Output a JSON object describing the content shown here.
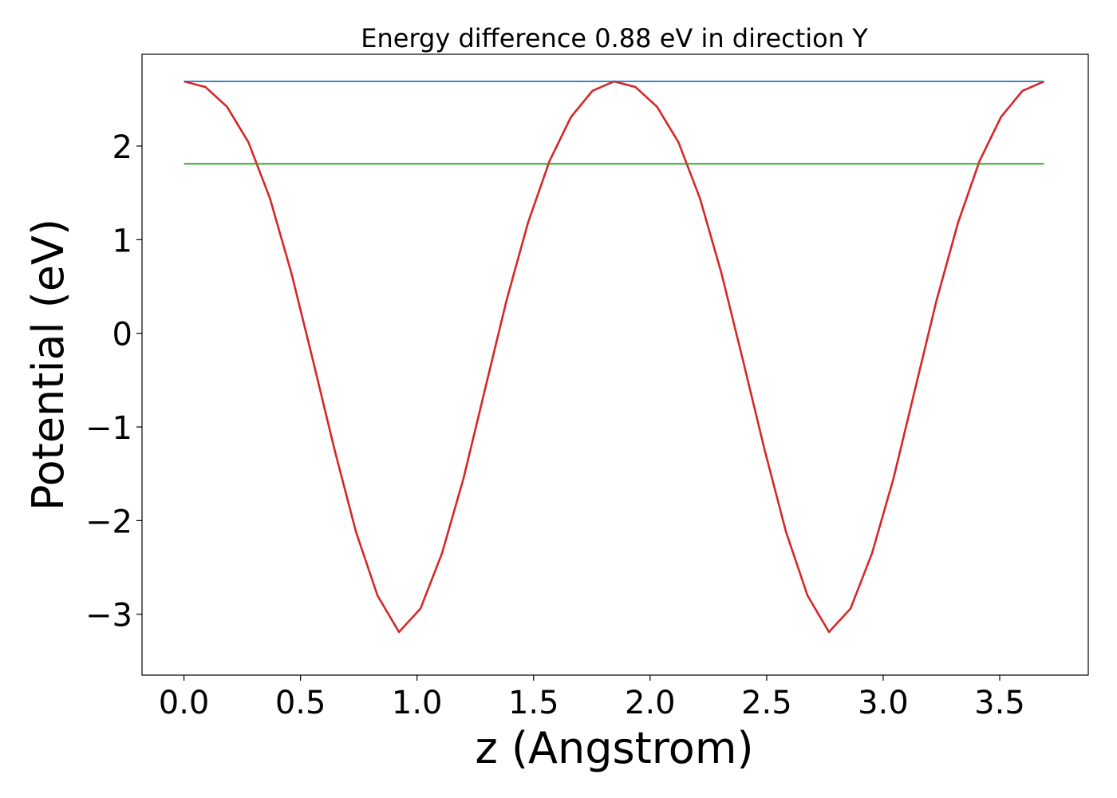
{
  "chart_data": {
    "type": "line",
    "title": "Energy difference 0.88 eV in direction Y",
    "xlabel": "z (Angstrom)",
    "ylabel": "Potential (eV)",
    "xlim": [
      -0.18,
      3.88
    ],
    "ylim": [
      -3.65,
      2.98
    ],
    "xticks": [
      0.0,
      0.5,
      1.0,
      1.5,
      2.0,
      2.5,
      3.0,
      3.5
    ],
    "xtick_labels": [
      "0.0",
      "0.5",
      "1.0",
      "1.5",
      "2.0",
      "2.5",
      "3.0",
      "3.5"
    ],
    "yticks": [
      -3,
      -2,
      -1,
      0,
      1,
      2
    ],
    "ytick_labels": [
      "−3",
      "−2",
      "−1",
      "0",
      "1",
      "2"
    ],
    "grid": false,
    "legend": "none",
    "series": [
      {
        "color": "#d62728",
        "x": [
          0.0,
          0.0923,
          0.1845,
          0.2768,
          0.369,
          0.4613,
          0.5535,
          0.6458,
          0.738,
          0.8303,
          0.9225,
          1.0148,
          1.107,
          1.1993,
          1.2915,
          1.3838,
          1.476,
          1.5683,
          1.6605,
          1.7528,
          1.845,
          1.9373,
          2.0295,
          2.1218,
          2.214,
          2.3063,
          2.3985,
          2.4908,
          2.583,
          2.6753,
          2.7675,
          2.8598,
          2.952,
          3.0443,
          3.1365,
          3.2288,
          3.321,
          3.4133,
          3.5055,
          3.5978,
          3.69
        ],
        "y": [
          2.69,
          2.63,
          2.42,
          2.04,
          1.44,
          0.64,
          -0.29,
          -1.24,
          -2.12,
          -2.8,
          -3.19,
          -2.94,
          -2.35,
          -1.55,
          -0.6,
          0.35,
          1.18,
          1.84,
          2.31,
          2.59,
          2.69,
          2.63,
          2.42,
          2.04,
          1.44,
          0.64,
          -0.29,
          -1.24,
          -2.12,
          -2.8,
          -3.19,
          -2.94,
          -2.35,
          -1.55,
          -0.6,
          0.35,
          1.18,
          1.84,
          2.31,
          2.59,
          2.69
        ]
      },
      {
        "color": "#1f77b4",
        "x": [
          0.0,
          3.69
        ],
        "y": [
          2.69,
          2.69
        ]
      },
      {
        "color": "#2ca02c",
        "x": [
          0.0,
          3.69
        ],
        "y": [
          1.81,
          1.81
        ]
      }
    ]
  }
}
